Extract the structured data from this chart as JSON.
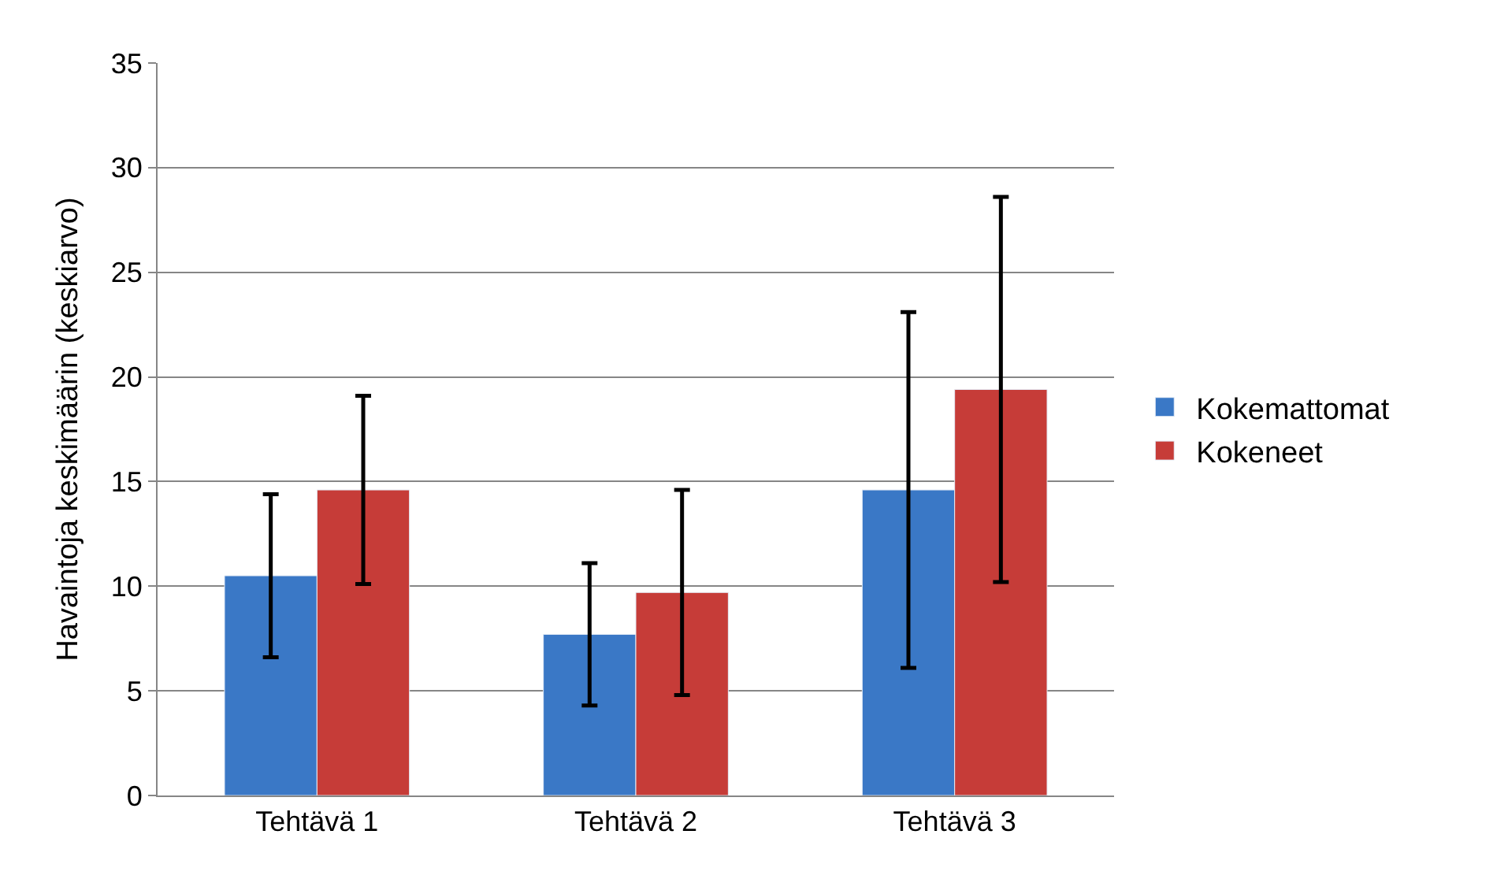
{
  "chart_data": {
    "type": "bar",
    "ylabel": "Havaintoja keskimäärin (keskiarvo)",
    "categories": [
      "Tehtävä 1",
      "Tehtävä 2",
      "Tehtävä 3"
    ],
    "series": [
      {
        "name": "Kokemattomat",
        "color": "#3a78c6",
        "values": [
          10.5,
          7.7,
          14.6
        ],
        "errors": [
          3.9,
          3.4,
          8.5
        ]
      },
      {
        "name": "Kokeneet",
        "color": "#c63c38",
        "values": [
          14.6,
          9.7,
          19.4
        ],
        "errors": [
          4.5,
          4.9,
          9.2
        ]
      }
    ],
    "ylim": [
      0,
      35
    ],
    "yticks": [
      0,
      5,
      10,
      15,
      20,
      25,
      30,
      35
    ],
    "grid": "y",
    "legend": "right"
  }
}
